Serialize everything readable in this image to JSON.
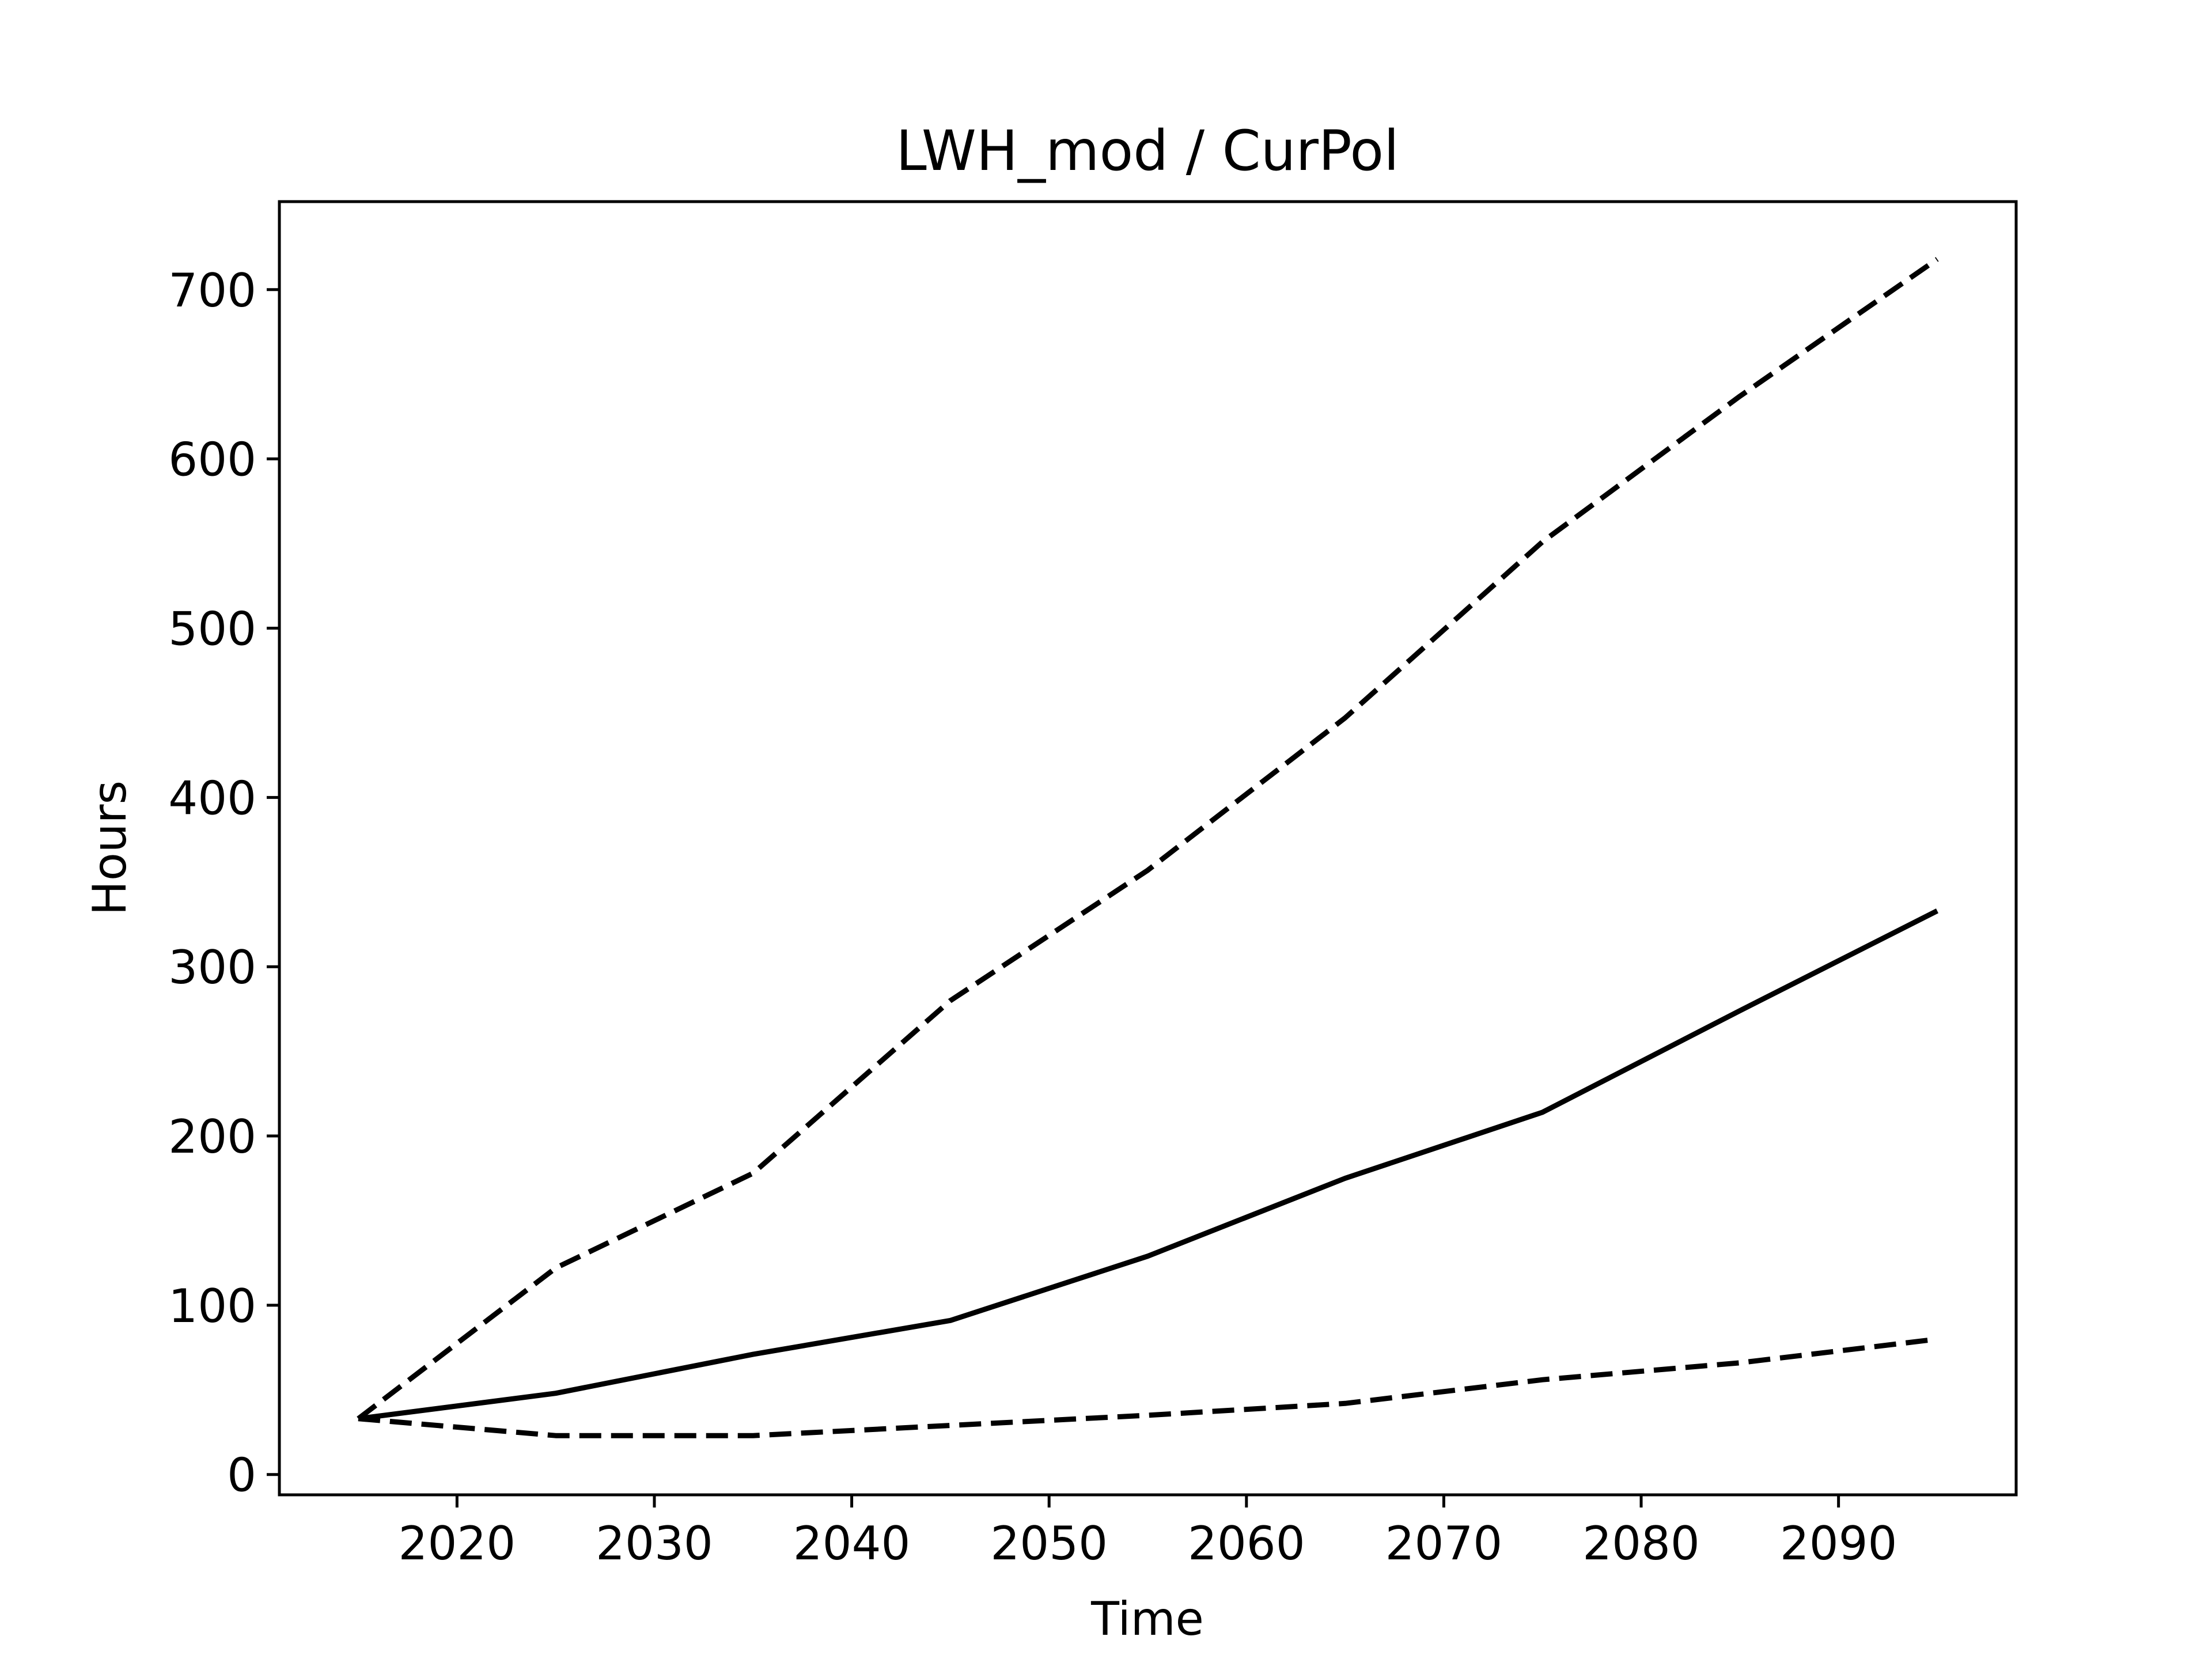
{
  "chart_data": {
    "type": "line",
    "title": "LWH_mod / CurPol",
    "xlabel": "Time",
    "ylabel": "Hours",
    "xlim": [
      2011,
      2099
    ],
    "ylim": [
      -12,
      752
    ],
    "xticks": [
      2020,
      2030,
      2040,
      2050,
      2060,
      2070,
      2080,
      2090
    ],
    "yticks": [
      0,
      100,
      200,
      300,
      400,
      500,
      600,
      700
    ],
    "grid": false,
    "legend": "none",
    "colors": {
      "line": "#000000",
      "axes": "#000000",
      "background": "#ffffff"
    },
    "series": [
      {
        "style": "dashed",
        "x": [
          2015,
          2025,
          2035,
          2045,
          2055,
          2065,
          2075,
          2085,
          2095
        ],
        "y": [
          33,
          122,
          178,
          280,
          357,
          447,
          551,
          637,
          718
        ]
      },
      {
        "style": "solid",
        "x": [
          2015,
          2025,
          2035,
          2045,
          2055,
          2065,
          2075,
          2085,
          2095
        ],
        "y": [
          33,
          48,
          71,
          91,
          129,
          175,
          214,
          274,
          333
        ]
      },
      {
        "style": "dashed",
        "x": [
          2015,
          2025,
          2035,
          2045,
          2055,
          2065,
          2075,
          2085,
          2095
        ],
        "y": [
          33,
          23,
          23,
          29,
          35,
          42,
          56,
          66,
          80
        ]
      }
    ]
  }
}
